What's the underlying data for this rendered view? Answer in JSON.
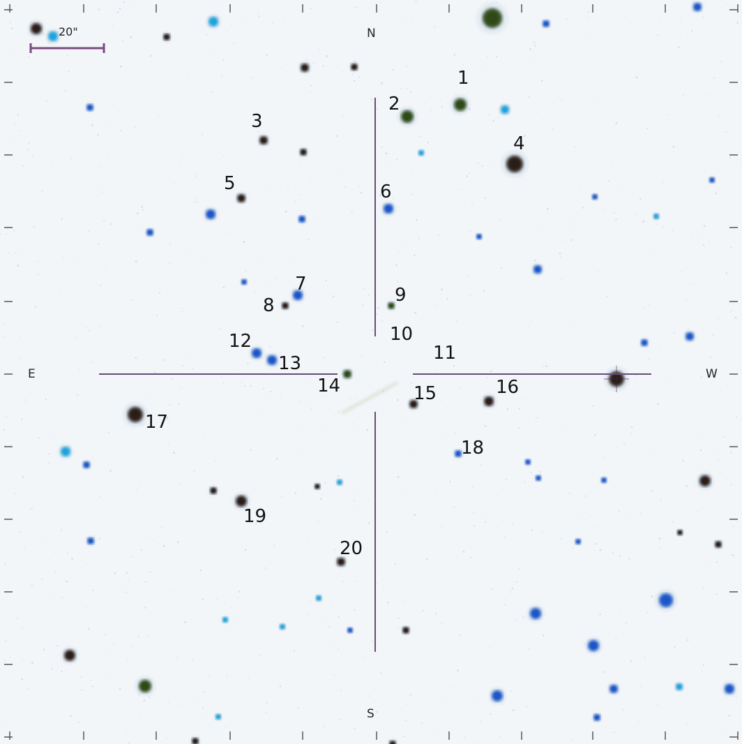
{
  "scale_bar": {
    "label": "20\""
  },
  "directions": {
    "north": "N",
    "south": "S",
    "east": "E",
    "west": "W"
  },
  "source_labels": [
    "1",
    "2",
    "3",
    "4",
    "5",
    "6",
    "7",
    "8",
    "9",
    "10",
    "11",
    "12",
    "13",
    "14",
    "15",
    "16",
    "17",
    "18",
    "19",
    "20"
  ],
  "colors": {
    "background": "#f3f6f9",
    "crosshair": "#6a4a7a",
    "scale_bar": "#7a4a80",
    "star_blue": "#1c55c8",
    "star_cyan": "#1aa3dc",
    "star_dark": "#2a1a14",
    "star_green": "#2e4a12"
  }
}
